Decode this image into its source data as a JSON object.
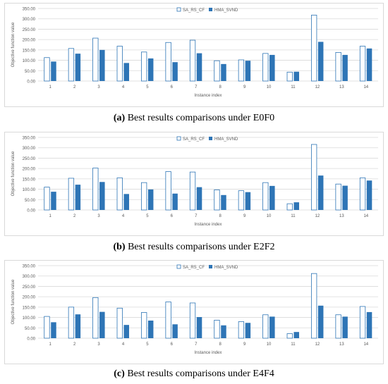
{
  "legend": {
    "series_a": "SA_RS_CF",
    "series_b": "HMA_SVND"
  },
  "colors": {
    "series_a_fill": "#ffffff",
    "series_a_stroke": "#2e75b6",
    "series_b_fill": "#2e75b6",
    "grid": "#d9d9d9",
    "tick_text": "#595959"
  },
  "chart_data": [
    {
      "type": "bar",
      "panel": "a",
      "caption_label": "(a)",
      "caption_text": " Best results comparisons under E0F0",
      "categories": [
        "1",
        "2",
        "3",
        "4",
        "5",
        "6",
        "7",
        "8",
        "9",
        "10",
        "11",
        "12",
        "13",
        "14"
      ],
      "series": [
        {
          "name": "SA_RS_CF",
          "values": [
            113,
            157,
            207,
            168,
            140,
            186,
            197,
            98,
            102,
            133,
            43,
            318,
            138,
            168
          ]
        },
        {
          "name": "HMA_SVND",
          "values": [
            94,
            132,
            150,
            87,
            109,
            91,
            134,
            82,
            98,
            126,
            45,
            189,
            126,
            157
          ]
        }
      ],
      "xlabel": "Instance index",
      "ylabel": "Objective function value",
      "ylim": [
        0,
        350
      ],
      "yticks": [
        "0.00",
        "50.00",
        "100.00",
        "150.00",
        "200.00",
        "250.00",
        "300.00",
        "350.00"
      ],
      "grid": true,
      "legend_position": "top-center"
    },
    {
      "type": "bar",
      "panel": "b",
      "caption_label": "(b)",
      "caption_text": " Best results comparisons under E2F2",
      "categories": [
        "1",
        "2",
        "3",
        "4",
        "5",
        "6",
        "7",
        "8",
        "9",
        "10",
        "11",
        "12",
        "13",
        "14"
      ],
      "series": [
        {
          "name": "SA_RS_CF",
          "values": [
            110,
            153,
            202,
            155,
            132,
            185,
            183,
            97,
            93,
            132,
            30,
            316,
            125,
            155
          ]
        },
        {
          "name": "HMA_SVND",
          "values": [
            88,
            122,
            135,
            77,
            99,
            79,
            110,
            72,
            86,
            116,
            37,
            166,
            117,
            142
          ]
        }
      ],
      "xlabel": "Instance index",
      "ylabel": "Objective function value",
      "ylim": [
        0,
        350
      ],
      "yticks": [
        "0.00",
        "50.00",
        "100.00",
        "150.00",
        "200.00",
        "250.00",
        "300.00",
        "350.00"
      ],
      "grid": true,
      "legend_position": "top-center"
    },
    {
      "type": "bar",
      "panel": "c",
      "caption_label": "(c)",
      "caption_text": " Best results comparisons under E4F4",
      "categories": [
        "1",
        "2",
        "3",
        "4",
        "5",
        "6",
        "7",
        "8",
        "9",
        "10",
        "11",
        "12",
        "13",
        "14"
      ],
      "series": [
        {
          "name": "SA_RS_CF",
          "values": [
            105,
            150,
            196,
            145,
            124,
            175,
            170,
            87,
            80,
            113,
            22,
            312,
            113,
            153
          ]
        },
        {
          "name": "HMA_SVND",
          "values": [
            77,
            115,
            127,
            64,
            85,
            67,
            102,
            62,
            74,
            104,
            30,
            157,
            104,
            126
          ]
        }
      ],
      "xlabel": "Instance index",
      "ylabel": "Objective function value",
      "ylim": [
        0,
        350
      ],
      "yticks": [
        "0.00",
        "50.00",
        "100.00",
        "150.00",
        "200.00",
        "250.00",
        "300.00",
        "350.00"
      ],
      "grid": true,
      "legend_position": "top-center"
    }
  ]
}
